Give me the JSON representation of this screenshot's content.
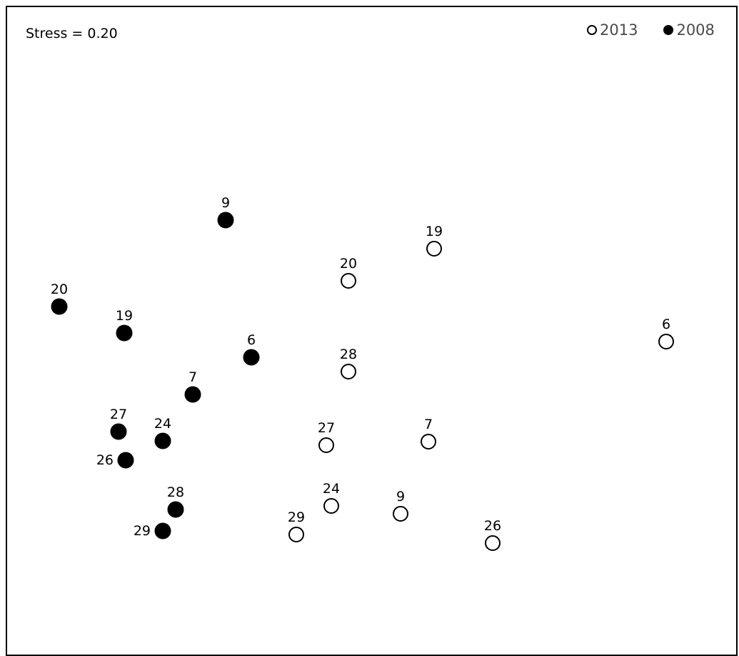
{
  "chart_data": {
    "type": "scatter",
    "title": "",
    "annotation": "Stress = 0.20",
    "xlabel": "",
    "ylabel": "",
    "xlim": [
      0,
      1000
    ],
    "ylim": [
      0,
      900
    ],
    "grid": false,
    "legend_position": "top-right",
    "series": [
      {
        "name": "2013",
        "marker": "open-circle",
        "color": "#000000",
        "points": [
          {
            "label": "19",
            "x": 600,
            "y": 560
          },
          {
            "label": "20",
            "x": 480,
            "y": 515
          },
          {
            "label": "6",
            "x": 925,
            "y": 430
          },
          {
            "label": "28",
            "x": 480,
            "y": 388
          },
          {
            "label": "27",
            "x": 449,
            "y": 285
          },
          {
            "label": "7",
            "x": 592,
            "y": 290
          },
          {
            "label": "24",
            "x": 456,
            "y": 200
          },
          {
            "label": "9",
            "x": 553,
            "y": 189
          },
          {
            "label": "29",
            "x": 407,
            "y": 160
          },
          {
            "label": "26",
            "x": 682,
            "y": 148
          }
        ]
      },
      {
        "name": "2008",
        "marker": "filled-circle",
        "color": "#000000",
        "points": [
          {
            "label": "9",
            "x": 308,
            "y": 600
          },
          {
            "label": "20",
            "x": 75,
            "y": 479
          },
          {
            "label": "19",
            "x": 166,
            "y": 442
          },
          {
            "label": "6",
            "x": 344,
            "y": 408
          },
          {
            "label": "7",
            "x": 262,
            "y": 356
          },
          {
            "label": "27",
            "x": 158,
            "y": 304
          },
          {
            "label": "24",
            "x": 220,
            "y": 291
          },
          {
            "label": "26",
            "x": 168,
            "y": 264
          },
          {
            "label": "28",
            "x": 238,
            "y": 195
          },
          {
            "label": "29",
            "x": 220,
            "y": 165
          }
        ]
      }
    ]
  }
}
